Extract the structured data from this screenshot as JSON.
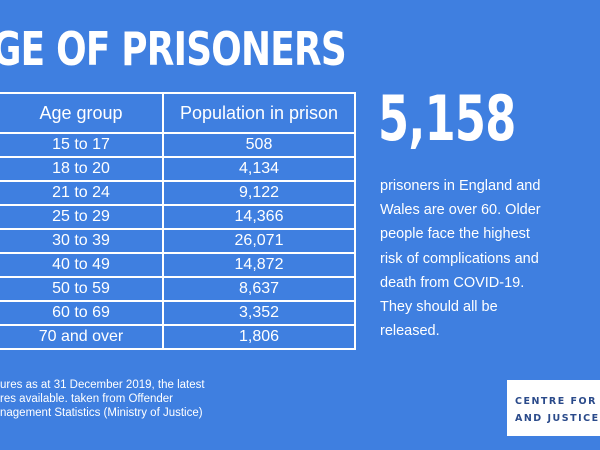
{
  "title": "GE OF PRISONERS",
  "table": {
    "headers": [
      "Age group",
      "Population in prison"
    ],
    "rows": [
      [
        "15 to 17",
        "508"
      ],
      [
        "18 to 20",
        "4,134"
      ],
      [
        "21 to 24",
        "9,122"
      ],
      [
        "25 to 29",
        "14,366"
      ],
      [
        "30 to 39",
        "26,071"
      ],
      [
        "40 to 49",
        "14,872"
      ],
      [
        "50 to 59",
        "8,637"
      ],
      [
        "60 to 69",
        "3,352"
      ],
      [
        "70 and over",
        "1,806"
      ]
    ]
  },
  "footnote": {
    "line1": "ures as at 31 December 2019, the latest",
    "line2": "res available. taken from Offender",
    "line3": "nagement Statistics (Ministry of Justice)"
  },
  "stat": {
    "number": "5,158",
    "text": "prisoners in England and Wales are over 60. Older people face the highest risk of complications and death from COVID-19. They should all be released."
  },
  "logo": {
    "line1": "CENTRE FOR C",
    "line2": "AND JUSTICE ST"
  },
  "colors": {
    "background": "#3f7fe0",
    "text": "#ffffff",
    "logo_text": "#2a4a8a"
  }
}
